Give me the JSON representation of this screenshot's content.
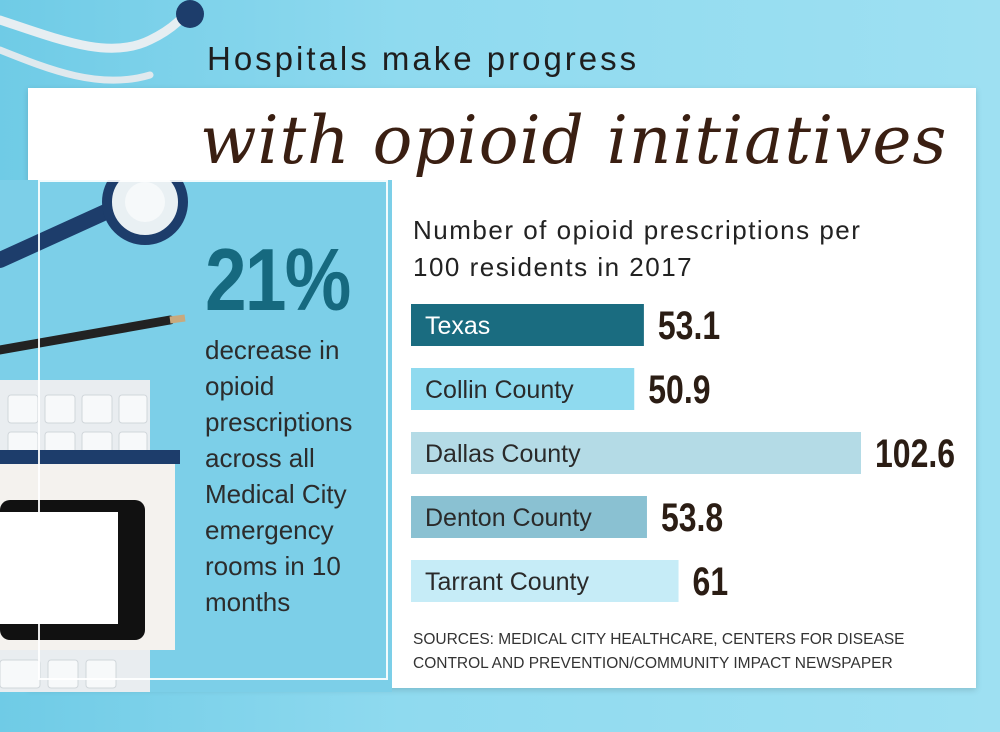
{
  "heading": {
    "line1": "Hospitals make progress",
    "line2": "with opioid initiatives"
  },
  "stat": {
    "value": "21%",
    "description": "decrease in opioid prescriptions across all Medical City emergency rooms in 10 months"
  },
  "chart_data": {
    "type": "bar",
    "orientation": "horizontal",
    "title": "Number of opioid prescriptions per 100 residents in 2017",
    "categories": [
      "Texas",
      "Collin County",
      "Dallas County",
      "Denton County",
      "Tarrant County"
    ],
    "values": [
      53.1,
      50.9,
      102.6,
      53.8,
      61
    ],
    "value_labels": [
      "53.1",
      "50.9",
      "102.6",
      "53.8",
      "61"
    ],
    "bar_colors": [
      "#1a6c80",
      "#8fdaef",
      "#b4dbe6",
      "#8ac1d2",
      "#c6ecf7"
    ],
    "label_colors": [
      "#ffffff",
      "#2a2a2a",
      "#2a2a2a",
      "#2a2a2a",
      "#2a2a2a"
    ],
    "xlabel": "",
    "ylabel": ""
  },
  "sources": "SOURCES: MEDICAL CITY HEALTHCARE, CENTERS FOR DISEASE CONTROL AND PREVENTION/COMMUNITY IMPACT NEWSPAPER"
}
